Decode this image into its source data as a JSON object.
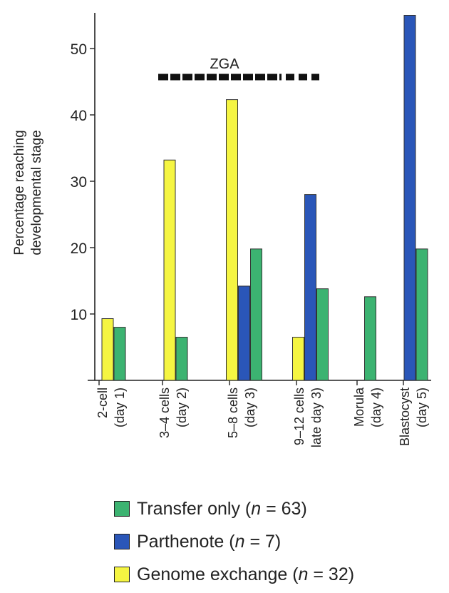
{
  "chart_data": {
    "type": "bar",
    "title": "",
    "xlabel": "",
    "ylabel": "Percentage reaching\ndevelopmental stage",
    "ylim": [
      0,
      55
    ],
    "yticks": [
      "10",
      "20",
      "30",
      "40",
      "50"
    ],
    "grid": false,
    "legend_position": "bottom",
    "categories": [
      "2-cell\n(day 1)",
      "3–4 cells\n(day 2)",
      "5–8 cells\n(day 3)",
      "9–12 cells\nlate day 3)",
      "Morula\n(day 4)",
      "Blastocyst\n(day 5)"
    ],
    "series": [
      {
        "name": "Genome exchange",
        "n_label": "(n = 32)",
        "color": "#f5f542",
        "values": [
          9.3,
          33.2,
          42.3,
          6.5,
          null,
          null
        ]
      },
      {
        "name": "Parthenote",
        "n_label": "(n = 7)",
        "color": "#2a56b8",
        "values": [
          null,
          null,
          14.2,
          28,
          null,
          55
        ]
      },
      {
        "name": "Transfer only",
        "n_label": "(n = 63)",
        "color": "#3cb371",
        "values": [
          8,
          6.5,
          19.8,
          13.8,
          12.6,
          19.8
        ]
      }
    ],
    "annotation": {
      "label": "ZGA",
      "solid_from": "3–4 cells",
      "solid_to": "9–12 cells"
    }
  },
  "legend": [
    {
      "name": "Transfer only",
      "n_label": "(n = 63)",
      "color": "#3cb371"
    },
    {
      "name": "Parthenote",
      "n_label": "(n = 7)",
      "color": "#2a56b8"
    },
    {
      "name": "Genome exchange",
      "n_label": "(n = 32)",
      "color": "#f5f542"
    }
  ]
}
